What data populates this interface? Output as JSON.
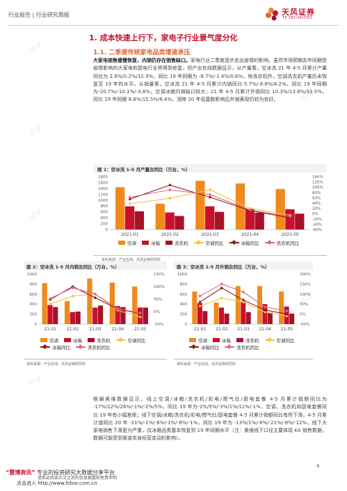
{
  "header": {
    "breadcrumb": "行业报告 | 行业研究周报",
    "logo_name": "天风证券",
    "logo_en": "TF SECURITIES"
  },
  "section": {
    "title": "1. 成本快速上行下，家电子行业景气度分化",
    "subtitle": "1.1. 二季度传统家电品类增速承压"
  },
  "para1": {
    "lead": "大家电销售缓慢恢复，内销仍存在销售缺口。",
    "body": "家电行业二季度逐步走出疫情的影响。虽然市场预期去年同期受疫情影响的大家电和厨电行业将得到修复，但产业在线数据显示，从产量看，空冰洗 21 年 4-5 月累计产量同比为 2.6%/0.2%/12.9%，同比 19 年同期为 -8.7%/-1.4%/0.6%，除洗衣机外，空调洗衣机产量仍未恢复至 19 年的水平。从销量看，空冰洗 21 年 4-5 月累计内销同比-5.7%/-8.8%/4.2%，同比 19 年同期为-20.7%/-10.1%/-3.8%，空调冰箱内销缺口较大；21 年 4-5 月累计外销同比 10.3%/13.8%/33.5%，同比 19 年同期 8.8%/15.5%/6.4%，消除 20 年低基数影响后外销表现仍较为良好。"
  },
  "figure1": {
    "title": "图 1：空冰洗 1-5 月产量及同比（万台，%）",
    "source": "资料来源：产业在线，天风证券研究所"
  },
  "figure2": {
    "title": "图 2：空冰洗 1-5 月内销及同比（万台，%）",
    "source": "资料来源：产业在线，天风证券研究所"
  },
  "figure3": {
    "title": "图 3：空冰洗 1-5 月外销及同比（万台，%）",
    "source": "资料来源：产业在线，天风证券研究所"
  },
  "legend": {
    "ac": "空调",
    "fridge": "冰箱",
    "washer": "洗衣机",
    "ac_yoy": "空调同比",
    "fridge_yoy": "冰箱同比",
    "washer_yoy": "洗衣机同比"
  },
  "para2": {
    "body": "根据奥维数据显示，线上空调/冰箱/洗衣机/彩电/燃气灶/厨电套餐 4-5 月累计销额同比为 -17%/12%/26%/-1%/-2%/5%，同比 19 年为-2%/5%/-3%/1%/11%/-1%，空调、洗衣机和厨电套餐同比 19 年有小幅差距；线下空调/冰箱/洗衣机/彩电/燃气灶/厨电套餐 4-5 月累计销额同比有所下滑，4-5 月累计值同比 20 年 -21%/-1%/-8%/-1%/-8%/-1%，同比 19 年为 -13%/1%/-6%/-21%/-8%/-12%，线下大家电销售下滑更为严重，仅冰箱品类基本恢复到 19 年同期水平（注：奥维线下口径主要体现 KA 销售数据，数据可能受到渠道本身经营变动的影响）。"
  },
  "footer": {
    "brand": "“慧博资讯”",
    "tagline": " 专业的投资研究大数据分享平台",
    "line2": "点击进入 http://www.hibor.com.cn",
    "disclaimer": "请务必阅读正文之后的信息披露和免责申明",
    "page": "4"
  },
  "colors": {
    "accent": "#c8102e",
    "ac": "#f08a1e",
    "fridge": "#c8102e",
    "washer": "#a8102a",
    "ac_yoy": "#f5c242",
    "fridge_yoy": "#8b1a1a",
    "washer_yoy": "#d86a8a"
  },
  "chart_data": [
    {
      "type": "bar",
      "title": "图 1：空冰洗 1-5 月产量及同比（万台，%）",
      "categories": [
        "2021-01",
        "2021-02",
        "2021-03",
        "2021-04",
        "2021-05"
      ],
      "ylim": [
        0,
        1800
      ],
      "y2lim": [
        -60,
        140
      ],
      "yticks": [
        0,
        200,
        400,
        600,
        800,
        1000,
        1200,
        1400,
        1600,
        1800
      ],
      "y2ticks": [
        -60,
        -40,
        -20,
        0,
        20,
        40,
        60,
        80,
        100,
        120,
        140
      ],
      "series": [
        {
          "name": "空调",
          "kind": "bar",
          "axis": "left",
          "values": [
            1440,
            880,
            1660,
            1570,
            1380
          ]
        },
        {
          "name": "冰箱",
          "kind": "bar",
          "axis": "left",
          "values": [
            790,
            580,
            790,
            700,
            690
          ]
        },
        {
          "name": "洗衣机",
          "kind": "bar",
          "axis": "left",
          "values": [
            620,
            460,
            600,
            570,
            540
          ]
        },
        {
          "name": "空调同比",
          "kind": "line",
          "axis": "right",
          "values": [
            38,
            58,
            90,
            20,
            -6
          ]
        },
        {
          "name": "冰箱同比",
          "kind": "line",
          "axis": "right",
          "values": [
            55,
            108,
            62,
            12,
            -16
          ]
        },
        {
          "name": "洗衣机同比",
          "kind": "line",
          "axis": "right",
          "values": [
            62,
            90,
            72,
            14,
            -12
          ]
        }
      ]
    },
    {
      "type": "bar",
      "title": "图 2：空冰洗 1-5 月内销及同比（万台，%）",
      "categories": [
        "21-01",
        "21-02",
        "21-03",
        "21-04",
        "21-05"
      ],
      "ylim": [
        0,
        1000
      ],
      "y2lim": [
        -50,
        150
      ],
      "yticks": [
        0,
        200,
        400,
        600,
        800,
        1000
      ],
      "y2ticks": [
        -50,
        0,
        50,
        100,
        150
      ],
      "series": [
        {
          "name": "空调",
          "kind": "bar",
          "axis": "left",
          "values": [
            820,
            460,
            910,
            830,
            750
          ]
        },
        {
          "name": "冰箱",
          "kind": "bar",
          "axis": "left",
          "values": [
            380,
            240,
            330,
            360,
            330
          ]
        },
        {
          "name": "洗衣机",
          "kind": "bar",
          "axis": "left",
          "values": [
            340,
            250,
            370,
            340,
            330
          ]
        },
        {
          "name": "空调同比",
          "kind": "line",
          "axis": "right",
          "values": [
            30,
            62,
            70,
            5,
            -22
          ]
        },
        {
          "name": "冰箱同比",
          "kind": "line",
          "axis": "right",
          "values": [
            48,
            100,
            55,
            10,
            -8
          ]
        },
        {
          "name": "洗衣机同比",
          "kind": "line",
          "axis": "right",
          "values": [
            52,
            95,
            70,
            12,
            -6
          ]
        }
      ]
    },
    {
      "type": "bar",
      "title": "图 3：空冰洗 1-5 月外销及同比（万台，%）",
      "categories": [
        "21-01",
        "21-02",
        "21-03",
        "21-04",
        "21-05"
      ],
      "ylim": [
        0,
        1000
      ],
      "y2lim": [
        -50,
        200
      ],
      "yticks": [
        0,
        200,
        400,
        600,
        800,
        1000
      ],
      "y2ticks": [
        -50,
        0,
        50,
        100,
        150,
        200
      ],
      "series": [
        {
          "name": "空调",
          "kind": "bar",
          "axis": "left",
          "values": [
            650,
            430,
            760,
            760,
            650
          ]
        },
        {
          "name": "冰箱",
          "kind": "bar",
          "axis": "left",
          "values": [
            420,
            330,
            450,
            400,
            350
          ]
        },
        {
          "name": "洗衣机",
          "kind": "bar",
          "axis": "left",
          "values": [
            260,
            210,
            240,
            230,
            210
          ]
        },
        {
          "name": "空调同比",
          "kind": "line",
          "axis": "right",
          "values": [
            40,
            80,
            60,
            10,
            -10
          ]
        },
        {
          "name": "冰箱同比",
          "kind": "line",
          "axis": "right",
          "values": [
            60,
            130,
            70,
            20,
            0
          ]
        },
        {
          "name": "洗衣机同比",
          "kind": "line",
          "axis": "right",
          "values": [
            90,
            150,
            110,
            35,
            15
          ]
        }
      ]
    }
  ]
}
